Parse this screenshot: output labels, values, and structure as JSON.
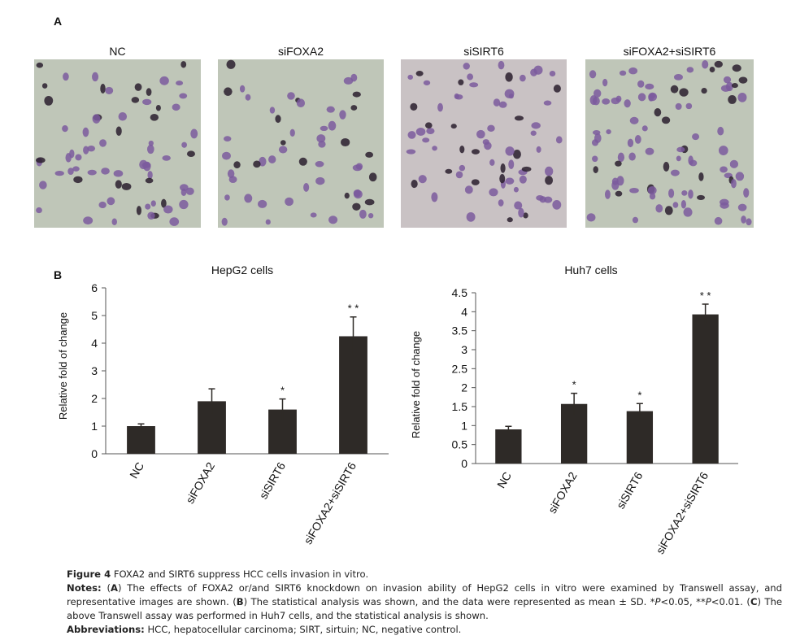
{
  "panel_a": {
    "label": "A",
    "images": [
      "NC",
      "siFOXA2",
      "siSIRT6",
      "siFOXA2+siSIRT6"
    ]
  },
  "panel_b": {
    "label": "B"
  },
  "chart_data": [
    {
      "type": "bar",
      "title": "HepG2 cells",
      "ylabel": "Relative fold of change",
      "categories": [
        "NC",
        "siFOXA2",
        "siSIRT6",
        "siFOXA2+siSIRT6"
      ],
      "values": [
        1.0,
        1.9,
        1.6,
        4.25
      ],
      "errors": [
        0.08,
        0.45,
        0.38,
        0.7
      ],
      "significance": [
        null,
        null,
        "*",
        "* *"
      ],
      "color": "#2e2a27",
      "ylim": [
        0,
        6
      ],
      "yticks": [
        0,
        1,
        2,
        3,
        4,
        5,
        6
      ],
      "grid": false
    },
    {
      "type": "bar",
      "title": "Huh7 cells",
      "ylabel": "Relative fold of change",
      "categories": [
        "NC",
        "siFOXA2",
        "siSIRT6",
        "siFOXA2+siSIRT6"
      ],
      "values": [
        0.9,
        1.57,
        1.38,
        3.93
      ],
      "errors": [
        0.08,
        0.28,
        0.2,
        0.27
      ],
      "significance": [
        null,
        "*",
        "*",
        "* *"
      ],
      "color": "#2e2a27",
      "ylim": [
        0,
        4.5
      ],
      "yticks": [
        0,
        0.5,
        1,
        1.5,
        2,
        2.5,
        3,
        3.5,
        4,
        4.5
      ],
      "grid": false
    }
  ],
  "caption": {
    "figure_label": "Figure 4",
    "title": "FOXA2 and SIRT6 suppress HCC cells invasion in vitro.",
    "notes_label": "Notes:",
    "notes": [
      "(",
      "A",
      ") The effects of FOXA2 or/and SIRT6 knockdown on invasion ability of HepG2 cells in vitro were examined by Transwell assay, and representative images are shown. (",
      "B",
      ") The statistical analysis was shown, and the data were represented as mean ± SD. *",
      "P",
      "<0.05, **",
      "P",
      "<0.01. (",
      "C",
      ") The above Transwell assay was performed in Huh7 cells, and the statistical analysis is shown."
    ],
    "abbreviations_label": "Abbreviations:",
    "abbreviations": "HCC, hepatocellular carcinoma; SIRT, sirtuin; NC, negative control."
  }
}
